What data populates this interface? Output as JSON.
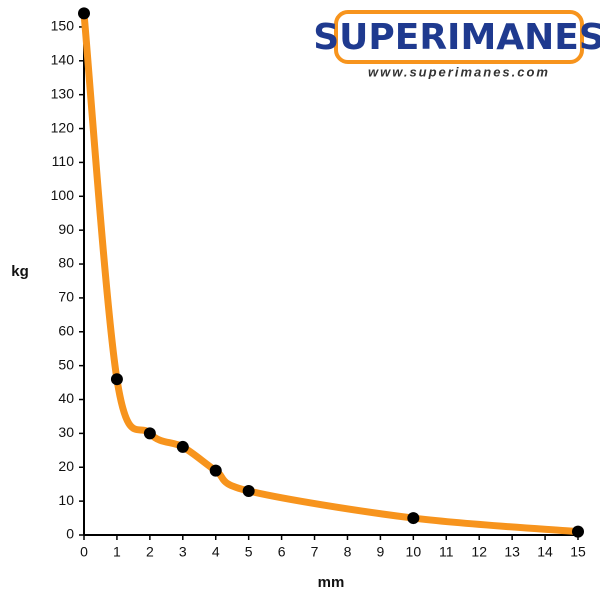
{
  "chart_data": {
    "type": "line",
    "x": [
      0,
      1,
      2,
      3,
      4,
      5,
      10,
      15
    ],
    "values": [
      154,
      46,
      30,
      26,
      19,
      13,
      5,
      1
    ],
    "color": "#f7941d",
    "marker_color": "#000000",
    "xlabel": "mm",
    "ylabel": "kg",
    "xlim": [
      0,
      15
    ],
    "xticks": [
      0,
      1,
      2,
      3,
      4,
      5,
      6,
      7,
      8,
      9,
      10,
      11,
      12,
      13,
      14,
      15
    ],
    "ylim": [
      0,
      155
    ],
    "yticks": [
      0,
      10,
      20,
      30,
      40,
      50,
      60,
      70,
      80,
      90,
      100,
      110,
      120,
      130,
      140,
      150
    ]
  },
  "logo": {
    "title": "SUPERIMANES",
    "url": "www.superimanes.com"
  }
}
